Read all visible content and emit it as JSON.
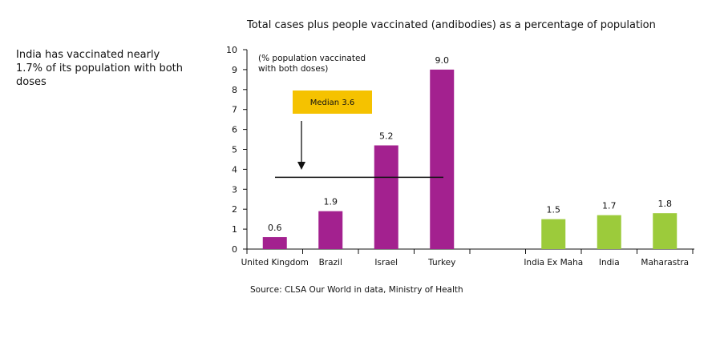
{
  "side_note": "India has vaccinated nearly 1.7% of its population with both doses",
  "source": "Source: CLSA Our World in data, Ministry of Health",
  "chart_data": {
    "type": "bar",
    "title": "Total cases plus people vaccinated (andibodies) as a percentage of population",
    "annotation": "(% population vaccinated\nwith both doses)",
    "median": {
      "label": "Median 3.6",
      "value": 3.6,
      "color": "#f5c200"
    },
    "ylim": [
      0,
      10
    ],
    "yticks": [
      0,
      1,
      2,
      3,
      4,
      5,
      6,
      7,
      8,
      9,
      10
    ],
    "grid": false,
    "categories": [
      "United Kingdom",
      "Brazil",
      "Israel",
      "Turkey",
      "",
      "India Ex Maha",
      "India",
      "Maharastra"
    ],
    "values": [
      0.6,
      1.9,
      5.2,
      9.0,
      null,
      1.5,
      1.7,
      1.8
    ],
    "value_labels": [
      "0.6",
      "1.9",
      "5.2",
      "9.0",
      "",
      "1.5",
      "1.7",
      "1.8"
    ],
    "colors": [
      "#a3218f",
      "#a3218f",
      "#a3218f",
      "#a3218f",
      "",
      "#9ccb3b",
      "#9ccb3b",
      "#9ccb3b"
    ]
  }
}
